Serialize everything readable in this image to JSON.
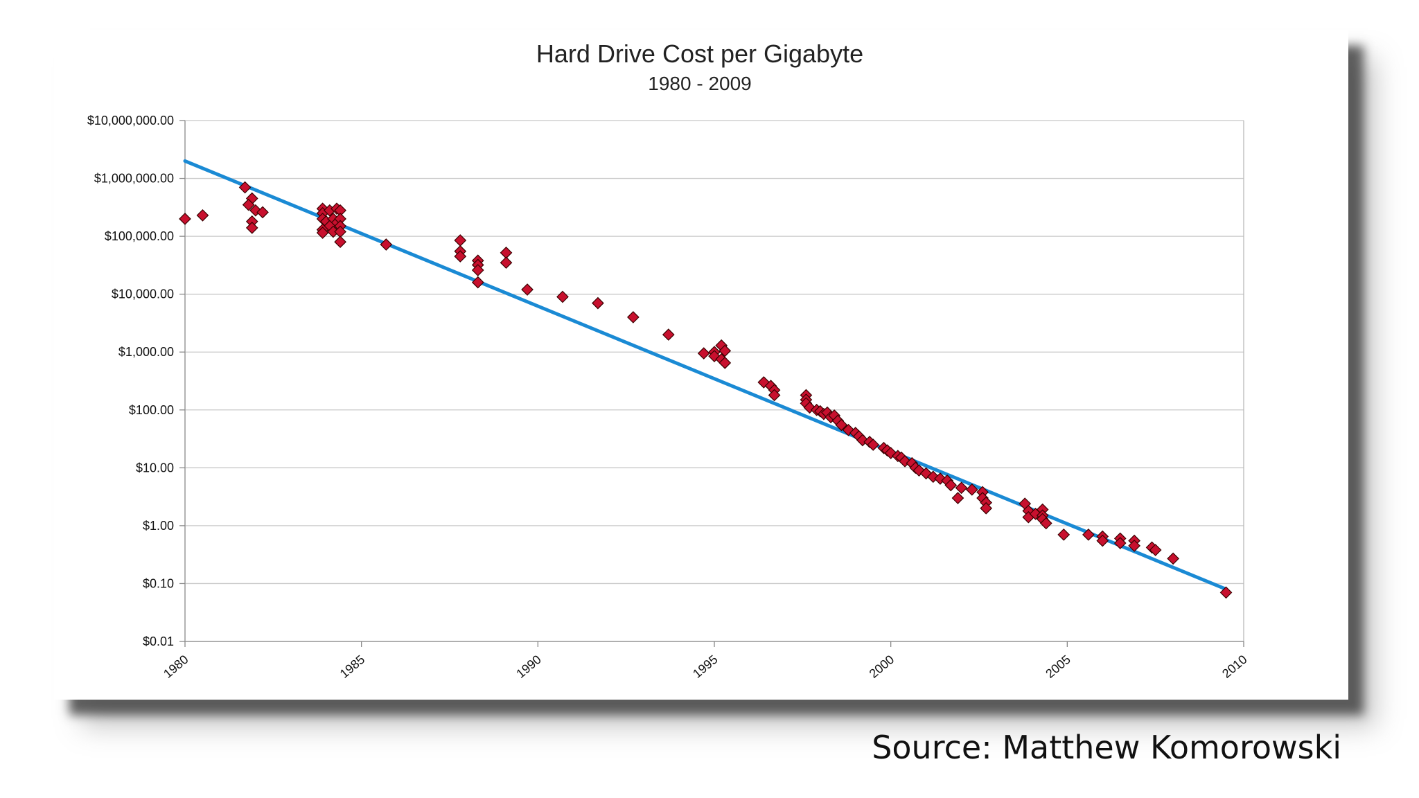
{
  "source_credit": "Source: Matthew Komorowski",
  "chart_data": {
    "type": "scatter",
    "title": "Hard Drive Cost per Gigabyte",
    "subtitle": "1980 - 2009",
    "xlabel": "",
    "ylabel": "",
    "xlim": [
      1980,
      2010
    ],
    "ylim": [
      0.01,
      10000000
    ],
    "y_scale": "log",
    "x_ticks": [
      1980,
      1985,
      1990,
      1995,
      2000,
      2005,
      2010
    ],
    "x_tick_labels": [
      "1980",
      "1985",
      "1990",
      "1995",
      "2000",
      "2005",
      "2010"
    ],
    "y_ticks": [
      0.01,
      0.1,
      1,
      10,
      100,
      1000,
      10000,
      100000,
      1000000,
      10000000
    ],
    "y_tick_labels": [
      "$0.01",
      "$0.10",
      "$1.00",
      "$10.00",
      "$100.00",
      "$1,000.00",
      "$10,000.00",
      "$100,000.00",
      "$1,000,000.00",
      "$10,000,000.00"
    ],
    "grid": "horizontal",
    "legend": "none",
    "colors": {
      "points": "#c8102e",
      "point_outline": "#3a0000",
      "trendline": "#1a8ad4",
      "grid": "#c8c8c8"
    },
    "trendline": {
      "x": [
        1980,
        2009.5
      ],
      "y": [
        2000000,
        0.08
      ]
    },
    "points": [
      [
        1980.0,
        200000
      ],
      [
        1980.5,
        230000
      ],
      [
        1981.7,
        700000
      ],
      [
        1981.9,
        450000
      ],
      [
        1981.8,
        350000
      ],
      [
        1982.0,
        280000
      ],
      [
        1982.2,
        260000
      ],
      [
        1981.9,
        180000
      ],
      [
        1981.9,
        140000
      ],
      [
        1983.9,
        300000
      ],
      [
        1983.9,
        250000
      ],
      [
        1984.1,
        280000
      ],
      [
        1984.3,
        300000
      ],
      [
        1984.4,
        280000
      ],
      [
        1983.9,
        200000
      ],
      [
        1984.0,
        180000
      ],
      [
        1984.2,
        200000
      ],
      [
        1984.3,
        170000
      ],
      [
        1984.4,
        200000
      ],
      [
        1984.1,
        150000
      ],
      [
        1983.9,
        130000
      ],
      [
        1984.2,
        120000
      ],
      [
        1984.4,
        150000
      ],
      [
        1984.4,
        120000
      ],
      [
        1983.9,
        115000
      ],
      [
        1984.4,
        80000
      ],
      [
        1985.7,
        72000
      ],
      [
        1987.8,
        85000
      ],
      [
        1987.8,
        55000
      ],
      [
        1987.8,
        45000
      ],
      [
        1988.3,
        38000
      ],
      [
        1988.3,
        32000
      ],
      [
        1988.3,
        26000
      ],
      [
        1988.3,
        16000
      ],
      [
        1989.1,
        52000
      ],
      [
        1989.1,
        35000
      ],
      [
        1989.7,
        12000
      ],
      [
        1990.7,
        9000
      ],
      [
        1991.7,
        7000
      ],
      [
        1992.7,
        4000
      ],
      [
        1993.7,
        2000
      ],
      [
        1994.7,
        950
      ],
      [
        1995.0,
        1000
      ],
      [
        1995.0,
        850
      ],
      [
        1995.2,
        1300
      ],
      [
        1995.3,
        1050
      ],
      [
        1995.2,
        750
      ],
      [
        1995.3,
        650
      ],
      [
        1996.4,
        300
      ],
      [
        1996.6,
        260
      ],
      [
        1996.7,
        220
      ],
      [
        1996.7,
        180
      ],
      [
        1997.6,
        180
      ],
      [
        1997.6,
        150
      ],
      [
        1997.6,
        130
      ],
      [
        1997.7,
        110
      ],
      [
        1997.9,
        100
      ],
      [
        1998.0,
        95
      ],
      [
        1998.1,
        85
      ],
      [
        1998.2,
        90
      ],
      [
        1998.3,
        75
      ],
      [
        1998.4,
        80
      ],
      [
        1998.5,
        65
      ],
      [
        1998.6,
        55
      ],
      [
        1998.8,
        45
      ],
      [
        1999.0,
        40
      ],
      [
        1999.1,
        35
      ],
      [
        1999.2,
        30
      ],
      [
        1999.4,
        28
      ],
      [
        1999.5,
        25
      ],
      [
        1999.8,
        22
      ],
      [
        1999.9,
        20
      ],
      [
        2000.0,
        18
      ],
      [
        2000.2,
        16
      ],
      [
        2000.3,
        15
      ],
      [
        2000.4,
        13
      ],
      [
        2000.6,
        12
      ],
      [
        2000.7,
        10
      ],
      [
        2000.8,
        9
      ],
      [
        2001.0,
        8
      ],
      [
        2001.2,
        7
      ],
      [
        2001.4,
        6.5
      ],
      [
        2001.6,
        6
      ],
      [
        2001.7,
        5
      ],
      [
        2001.9,
        3
      ],
      [
        2002.0,
        4.5
      ],
      [
        2002.3,
        4.2
      ],
      [
        2002.6,
        3.8
      ],
      [
        2002.6,
        3.0
      ],
      [
        2002.7,
        2.5
      ],
      [
        2002.7,
        2.0
      ],
      [
        2003.8,
        2.4
      ],
      [
        2003.9,
        1.8
      ],
      [
        2003.9,
        1.4
      ],
      [
        2004.1,
        1.6
      ],
      [
        2004.3,
        1.9
      ],
      [
        2004.3,
        1.5
      ],
      [
        2004.3,
        1.3
      ],
      [
        2004.4,
        1.1
      ],
      [
        2004.9,
        0.7
      ],
      [
        2005.6,
        0.7
      ],
      [
        2006.0,
        0.65
      ],
      [
        2006.0,
        0.55
      ],
      [
        2006.5,
        0.6
      ],
      [
        2006.5,
        0.5
      ],
      [
        2006.9,
        0.55
      ],
      [
        2006.9,
        0.45
      ],
      [
        2007.4,
        0.42
      ],
      [
        2007.5,
        0.38
      ],
      [
        2008.0,
        0.27
      ],
      [
        2009.5,
        0.07
      ]
    ]
  }
}
